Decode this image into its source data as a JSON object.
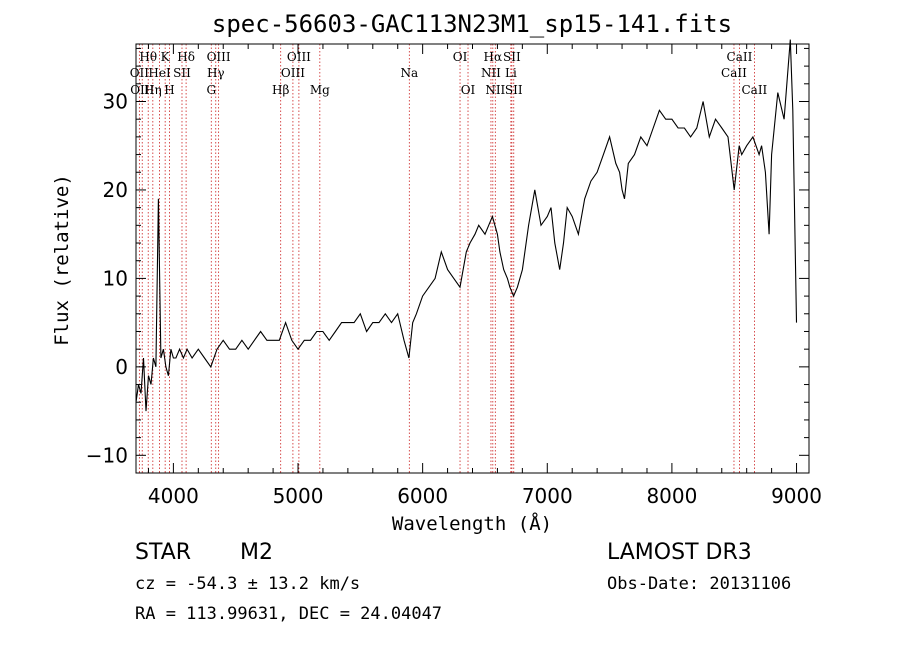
{
  "chart_data": {
    "type": "line",
    "title": "spec-56603-GAC113N23M1_sp15-141.fits",
    "xlabel": "Wavelength (Å)",
    "ylabel": "Flux (relative)",
    "xlim": [
      3700,
      9100
    ],
    "ylim": [
      -12,
      36.5
    ],
    "xticks": [
      4000,
      5000,
      6000,
      7000,
      8000,
      9000
    ],
    "yticks": [
      -10,
      0,
      10,
      20,
      30
    ],
    "series": [
      {
        "name": "flux",
        "x": [
          3700,
          3720,
          3740,
          3760,
          3780,
          3800,
          3820,
          3840,
          3860,
          3880,
          3900,
          3920,
          3940,
          3960,
          3980,
          4000,
          4020,
          4050,
          4080,
          4110,
          4150,
          4200,
          4250,
          4300,
          4350,
          4400,
          4450,
          4500,
          4550,
          4600,
          4650,
          4700,
          4750,
          4800,
          4850,
          4900,
          4950,
          5000,
          5050,
          5100,
          5150,
          5200,
          5250,
          5300,
          5350,
          5400,
          5450,
          5500,
          5550,
          5600,
          5650,
          5700,
          5750,
          5800,
          5850,
          5890,
          5920,
          5950,
          6000,
          6050,
          6100,
          6150,
          6200,
          6250,
          6300,
          6350,
          6380,
          6420,
          6450,
          6500,
          6530,
          6560,
          6580,
          6600,
          6620,
          6650,
          6680,
          6700,
          6730,
          6760,
          6800,
          6850,
          6900,
          6950,
          7000,
          7030,
          7060,
          7100,
          7130,
          7160,
          7200,
          7250,
          7300,
          7350,
          7400,
          7450,
          7500,
          7550,
          7580,
          7600,
          7620,
          7650,
          7700,
          7750,
          7800,
          7850,
          7900,
          7950,
          8000,
          8050,
          8100,
          8150,
          8200,
          8250,
          8300,
          8350,
          8400,
          8450,
          8500,
          8540,
          8560,
          8600,
          8650,
          8700,
          8720,
          8750,
          8780,
          8800,
          8850,
          8900,
          8950,
          8970,
          9000
        ],
        "y": [
          -4,
          -2,
          -3,
          1,
          -5,
          -1,
          -2,
          1,
          0,
          19,
          1,
          2,
          0,
          -1,
          2,
          1,
          1,
          2,
          1,
          2,
          1,
          2,
          1,
          0,
          2,
          3,
          2,
          2,
          3,
          2,
          3,
          4,
          3,
          3,
          3,
          5,
          3,
          2,
          3,
          3,
          4,
          4,
          3,
          4,
          5,
          5,
          5,
          6,
          4,
          5,
          5,
          6,
          5,
          6,
          3,
          1,
          5,
          6,
          8,
          9,
          10,
          13,
          11,
          10,
          9,
          13,
          14,
          15,
          16,
          15,
          16,
          17,
          16,
          15,
          13,
          11,
          10,
          9,
          8,
          9,
          11,
          16,
          20,
          16,
          17,
          18,
          14,
          11,
          14,
          18,
          17,
          15,
          19,
          21,
          22,
          24,
          26,
          23,
          22,
          20,
          19,
          23,
          24,
          26,
          25,
          27,
          29,
          28,
          28,
          27,
          27,
          26,
          27,
          30,
          26,
          28,
          27,
          26,
          20,
          25,
          24,
          25,
          26,
          24,
          25,
          22,
          15,
          24,
          31,
          28,
          37,
          29,
          5
        ]
      }
    ],
    "emission_lines": [
      {
        "label": "Hθ",
        "wl": 3798,
        "row": 1
      },
      {
        "label": "OII",
        "wl": 3727,
        "row": 2
      },
      {
        "label": "OIII",
        "wl": 3750,
        "row": 3
      },
      {
        "label": "K",
        "wl": 3934,
        "row": 1
      },
      {
        "label": "HeI",
        "wl": 3889,
        "row": 2
      },
      {
        "label": "Hη",
        "wl": 3835,
        "row": 3
      },
      {
        "label": "H",
        "wl": 3969,
        "row": 3
      },
      {
        "label": "SII",
        "wl": 4069,
        "row": 2
      },
      {
        "label": "Hδ",
        "wl": 4102,
        "row": 1
      },
      {
        "label": "OIII",
        "wl": 4363,
        "row": 1
      },
      {
        "label": "Hγ",
        "wl": 4340,
        "row": 2
      },
      {
        "label": "G",
        "wl": 4304,
        "row": 3
      },
      {
        "label": "Hβ",
        "wl": 4861,
        "row": 3
      },
      {
        "label": "OIII",
        "wl": 4959,
        "row": 2
      },
      {
        "label": "OIII",
        "wl": 5007,
        "row": 1
      },
      {
        "label": "Mg",
        "wl": 5175,
        "row": 3
      },
      {
        "label": "Na",
        "wl": 5893,
        "row": 2
      },
      {
        "label": "OI",
        "wl": 6300,
        "row": 1
      },
      {
        "label": "OI",
        "wl": 6364,
        "row": 3
      },
      {
        "label": "Hα",
        "wl": 6563,
        "row": 1
      },
      {
        "label": "NII",
        "wl": 6548,
        "row": 2
      },
      {
        "label": "NII",
        "wl": 6583,
        "row": 3
      },
      {
        "label": "Li",
        "wl": 6708,
        "row": 2
      },
      {
        "label": "SII",
        "wl": 6716,
        "row": 1
      },
      {
        "label": "SII",
        "wl": 6731,
        "row": 3
      },
      {
        "label": "CaII",
        "wl": 8542,
        "row": 1
      },
      {
        "label": "CaII",
        "wl": 8498,
        "row": 2
      },
      {
        "label": "CaII",
        "wl": 8662,
        "row": 3
      }
    ]
  },
  "info": {
    "class": "STAR",
    "subclass": "M2",
    "cz": "cz = -54.3 ± 13.2 km/s",
    "radec": "RA = 113.99631, DEC =  24.04047",
    "survey": "LAMOST DR3",
    "obsdate": "Obs-Date: 20131106"
  },
  "colors": {
    "line_marker": "#cc2222",
    "spectrum": "#000000"
  }
}
